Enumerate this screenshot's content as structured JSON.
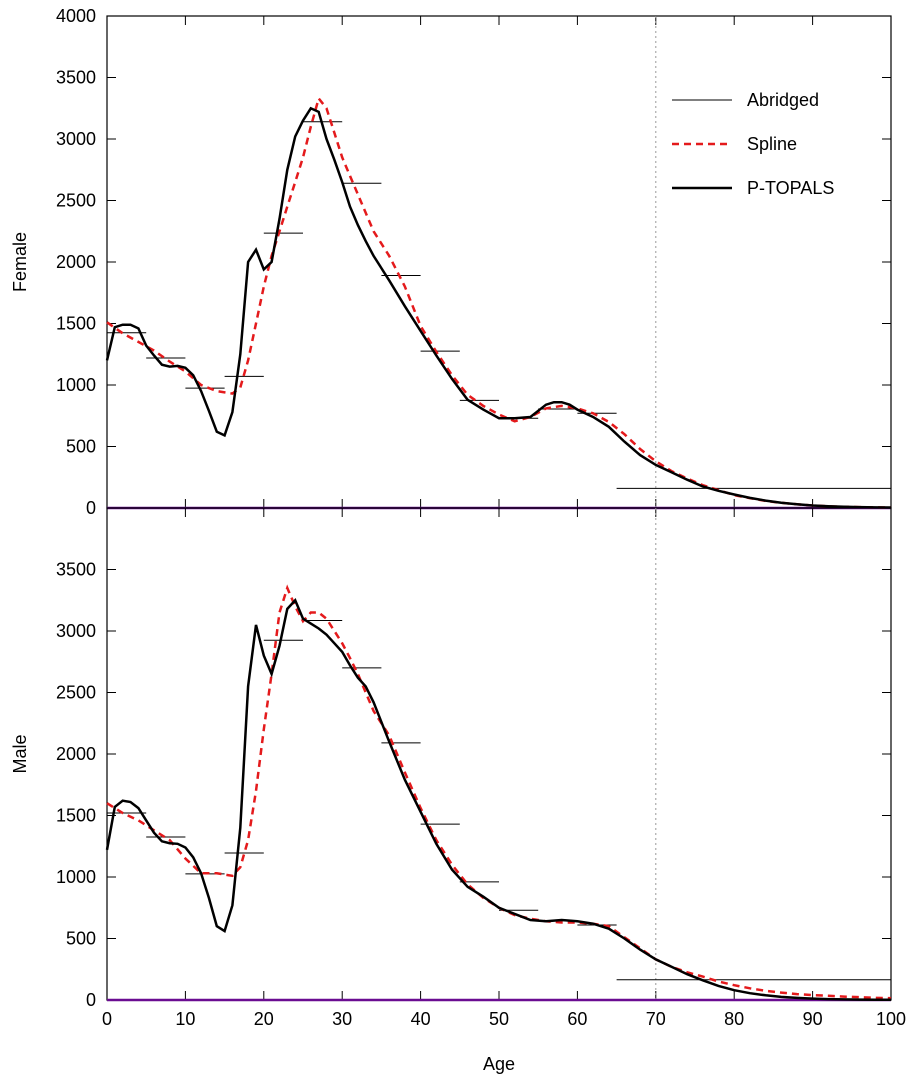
{
  "chart_data": [
    {
      "type": "line",
      "panel": "top",
      "ylabel": "Female",
      "xlabel": "",
      "xlim": [
        0,
        100
      ],
      "ylim": [
        0,
        4000
      ],
      "yticks": [
        0,
        500,
        1000,
        1500,
        2000,
        2500,
        3000,
        3500,
        4000
      ],
      "reference_lines": {
        "vertical_dotted_x": 70,
        "horizontal_zero_color": "#6a0d91"
      },
      "legend": {
        "position": "top-right",
        "entries": [
          {
            "label": "Abridged",
            "style": "thin-solid",
            "color": "#000000"
          },
          {
            "label": "Spline",
            "style": "dashed",
            "color": "#e41a1c"
          },
          {
            "label": "P-TOPALS",
            "style": "thick-solid",
            "color": "#000000"
          }
        ]
      },
      "series": [
        {
          "name": "Abridged",
          "kind": "step",
          "segments": [
            {
              "x0": 0,
              "x1": 5,
              "y": 1425
            },
            {
              "x0": 5,
              "x1": 10,
              "y": 1220
            },
            {
              "x0": 10,
              "x1": 15,
              "y": 975
            },
            {
              "x0": 15,
              "x1": 20,
              "y": 1070
            },
            {
              "x0": 20,
              "x1": 25,
              "y": 2235
            },
            {
              "x0": 25,
              "x1": 30,
              "y": 3140
            },
            {
              "x0": 30,
              "x1": 35,
              "y": 2640
            },
            {
              "x0": 35,
              "x1": 40,
              "y": 1890
            },
            {
              "x0": 40,
              "x1": 45,
              "y": 1275
            },
            {
              "x0": 45,
              "x1": 50,
              "y": 875
            },
            {
              "x0": 50,
              "x1": 55,
              "y": 730
            },
            {
              "x0": 55,
              "x1": 60,
              "y": 805
            },
            {
              "x0": 60,
              "x1": 65,
              "y": 770
            },
            {
              "x0": 65,
              "x1": 100,
              "y": 160
            }
          ]
        },
        {
          "name": "Spline",
          "x": [
            0,
            2,
            4,
            6,
            8,
            10,
            12,
            14,
            16,
            17,
            18,
            19,
            20,
            21,
            22,
            23,
            24,
            25,
            26,
            27,
            28,
            29,
            30,
            31,
            32,
            33,
            34,
            36,
            38,
            40,
            42,
            44,
            46,
            48,
            50,
            52,
            54,
            56,
            58,
            60,
            62,
            64,
            66,
            68,
            70,
            72,
            74,
            76,
            78,
            80,
            82,
            84,
            86,
            88,
            90,
            92,
            94,
            96,
            98,
            100
          ],
          "y": [
            1510,
            1420,
            1350,
            1280,
            1190,
            1110,
            1000,
            950,
            930,
            980,
            1200,
            1500,
            1800,
            2050,
            2250,
            2450,
            2650,
            2850,
            3100,
            3330,
            3250,
            3050,
            2850,
            2700,
            2550,
            2400,
            2250,
            2050,
            1800,
            1480,
            1270,
            1080,
            920,
            830,
            760,
            705,
            740,
            810,
            830,
            810,
            770,
            700,
            600,
            480,
            380,
            300,
            240,
            185,
            145,
            105,
            80,
            58,
            42,
            30,
            20,
            14,
            10,
            7,
            5,
            4
          ]
        },
        {
          "name": "P-TOPALS",
          "x": [
            0,
            1,
            2,
            3,
            4,
            5,
            6,
            7,
            8,
            9,
            10,
            11,
            12,
            13,
            14,
            15,
            16,
            17,
            18,
            19,
            20,
            21,
            22,
            23,
            24,
            25,
            26,
            27,
            28,
            29,
            30,
            31,
            32,
            33,
            34,
            36,
            38,
            40,
            42,
            44,
            46,
            48,
            50,
            52,
            54,
            55,
            56,
            57,
            58,
            59,
            60,
            62,
            64,
            66,
            68,
            70,
            72,
            74,
            76,
            78,
            80,
            82,
            84,
            86,
            88,
            90,
            92,
            94,
            96,
            98,
            100
          ],
          "y": [
            1200,
            1470,
            1490,
            1490,
            1460,
            1320,
            1240,
            1165,
            1150,
            1155,
            1140,
            1080,
            950,
            790,
            620,
            590,
            780,
            1250,
            2000,
            2100,
            1940,
            2000,
            2350,
            2750,
            3020,
            3150,
            3250,
            3220,
            3000,
            2830,
            2650,
            2450,
            2300,
            2170,
            2050,
            1850,
            1640,
            1440,
            1240,
            1050,
            880,
            800,
            730,
            730,
            740,
            790,
            840,
            860,
            860,
            840,
            800,
            740,
            660,
            540,
            430,
            350,
            290,
            230,
            175,
            140,
            110,
            82,
            60,
            42,
            30,
            20,
            14,
            10,
            7,
            5,
            4
          ]
        }
      ]
    },
    {
      "type": "line",
      "panel": "bottom",
      "ylabel": "Male",
      "xlabel": "Age",
      "xlim": [
        0,
        100
      ],
      "ylim": [
        0,
        4000
      ],
      "yticks": [
        0,
        500,
        1000,
        1500,
        2000,
        2500,
        3000,
        3500
      ],
      "xticks": [
        0,
        10,
        20,
        30,
        40,
        50,
        60,
        70,
        80,
        90,
        100
      ],
      "reference_lines": {
        "vertical_dotted_x": 70,
        "horizontal_zero_color": "#6a0d91"
      },
      "series": [
        {
          "name": "Abridged",
          "kind": "step",
          "segments": [
            {
              "x0": 0,
              "x1": 5,
              "y": 1520
            },
            {
              "x0": 5,
              "x1": 10,
              "y": 1325
            },
            {
              "x0": 10,
              "x1": 15,
              "y": 1025
            },
            {
              "x0": 15,
              "x1": 20,
              "y": 1195
            },
            {
              "x0": 20,
              "x1": 25,
              "y": 2925
            },
            {
              "x0": 25,
              "x1": 30,
              "y": 3085
            },
            {
              "x0": 30,
              "x1": 35,
              "y": 2700
            },
            {
              "x0": 35,
              "x1": 40,
              "y": 2090
            },
            {
              "x0": 40,
              "x1": 45,
              "y": 1430
            },
            {
              "x0": 45,
              "x1": 50,
              "y": 960
            },
            {
              "x0": 50,
              "x1": 55,
              "y": 730
            },
            {
              "x0": 55,
              "x1": 60,
              "y": 645
            },
            {
              "x0": 60,
              "x1": 65,
              "y": 610
            },
            {
              "x0": 65,
              "x1": 100,
              "y": 165
            }
          ]
        },
        {
          "name": "Spline",
          "x": [
            0,
            2,
            4,
            6,
            8,
            10,
            12,
            14,
            16,
            17,
            18,
            19,
            20,
            21,
            22,
            23,
            24,
            25,
            26,
            27,
            28,
            29,
            30,
            31,
            32,
            33,
            34,
            36,
            38,
            40,
            42,
            44,
            46,
            48,
            50,
            52,
            54,
            56,
            58,
            60,
            62,
            64,
            66,
            68,
            70,
            72,
            74,
            76,
            78,
            80,
            82,
            84,
            86,
            88,
            90,
            92,
            94,
            96,
            98,
            100
          ],
          "y": [
            1600,
            1520,
            1460,
            1380,
            1300,
            1150,
            1030,
            1030,
            1010,
            1080,
            1300,
            1700,
            2200,
            2650,
            3150,
            3350,
            3200,
            3080,
            3150,
            3150,
            3100,
            3000,
            2900,
            2780,
            2650,
            2500,
            2350,
            2150,
            1850,
            1560,
            1300,
            1100,
            940,
            830,
            750,
            690,
            660,
            640,
            630,
            630,
            620,
            600,
            510,
            420,
            330,
            270,
            225,
            190,
            150,
            120,
            95,
            75,
            60,
            48,
            40,
            34,
            28,
            23,
            18,
            15
          ]
        },
        {
          "name": "P-TOPALS",
          "x": [
            0,
            1,
            2,
            3,
            4,
            5,
            6,
            7,
            8,
            9,
            10,
            11,
            12,
            13,
            14,
            15,
            16,
            17,
            18,
            19,
            20,
            21,
            22,
            23,
            24,
            25,
            26,
            27,
            28,
            29,
            30,
            31,
            32,
            33,
            34,
            36,
            38,
            40,
            42,
            44,
            46,
            48,
            50,
            52,
            54,
            56,
            58,
            60,
            62,
            64,
            66,
            68,
            70,
            72,
            74,
            76,
            78,
            80,
            82,
            84,
            86,
            88,
            90,
            92,
            94,
            96,
            98,
            100
          ],
          "y": [
            1220,
            1570,
            1620,
            1610,
            1560,
            1460,
            1360,
            1290,
            1275,
            1270,
            1240,
            1160,
            1030,
            830,
            600,
            560,
            770,
            1400,
            2550,
            3050,
            2800,
            2650,
            2880,
            3180,
            3250,
            3100,
            3060,
            3020,
            2970,
            2900,
            2830,
            2720,
            2620,
            2550,
            2420,
            2100,
            1790,
            1530,
            1270,
            1060,
            920,
            840,
            750,
            700,
            650,
            640,
            650,
            640,
            620,
            580,
            500,
            410,
            330,
            270,
            210,
            160,
            115,
            80,
            55,
            38,
            25,
            17,
            11,
            7,
            5,
            3,
            2,
            2
          ]
        }
      ]
    }
  ]
}
